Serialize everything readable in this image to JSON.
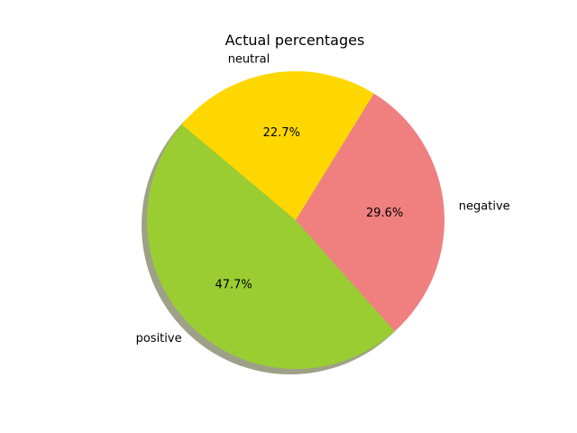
{
  "chart_data": {
    "type": "pie",
    "title": "Actual percentages",
    "categories": [
      "positive",
      "negative",
      "neutral"
    ],
    "values": [
      47.7,
      29.6,
      22.7
    ],
    "value_labels": [
      "47.7%",
      "29.6%",
      "22.7%"
    ],
    "colors": [
      "#9acd32",
      "#f08080",
      "#ffd700"
    ],
    "shadow": true,
    "start_angle_deg": 140,
    "direction": "counterclockwise",
    "legend": "none"
  }
}
